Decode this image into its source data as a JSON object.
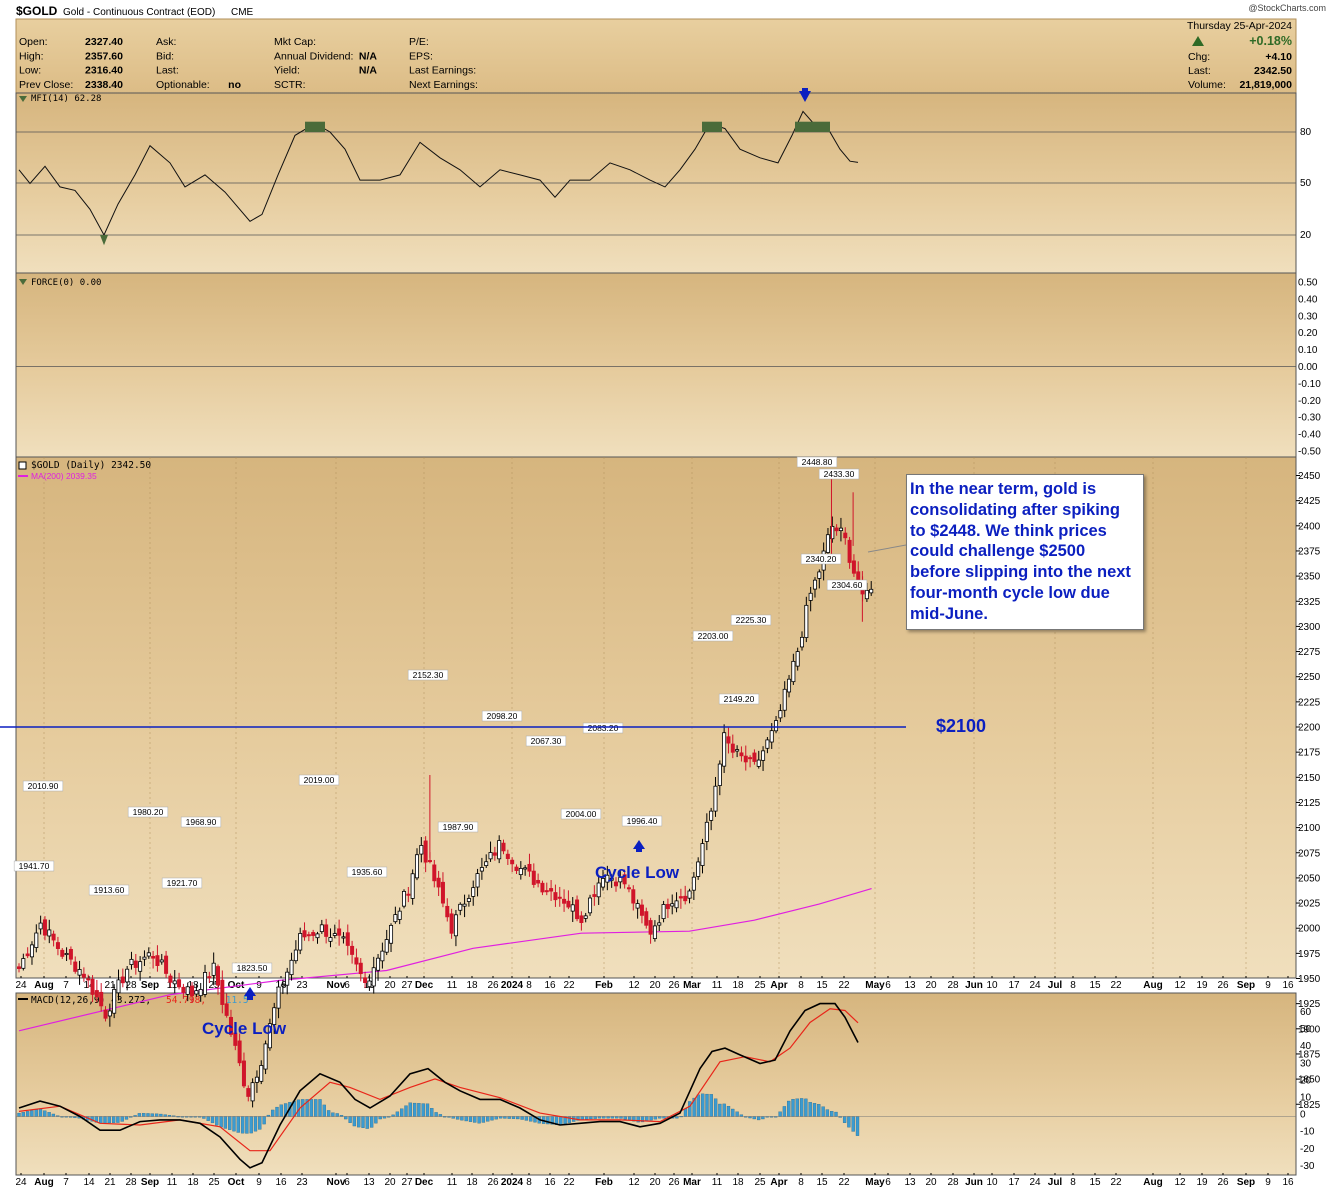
{
  "header": {
    "symbol": "$GOLD",
    "description": "Gold - Continuous Contract (EOD)",
    "exchange": "CME",
    "watermark": "@StockCharts.com",
    "date": "Thursday  25-Apr-2024",
    "stats_left": [
      {
        "label": "Open:",
        "value": "2327.40"
      },
      {
        "label": "High:",
        "value": "2357.60"
      },
      {
        "label": "Low:",
        "value": "2316.40"
      },
      {
        "label": "Prev Close:",
        "value": "2338.40"
      }
    ],
    "stats_mid": [
      {
        "label": "Ask:",
        "value": ""
      },
      {
        "label": "Bid:",
        "value": ""
      },
      {
        "label": "Last:",
        "value": ""
      },
      {
        "label": "Optionable:",
        "value": "no"
      }
    ],
    "stats_mid2": [
      {
        "label": "Mkt Cap:",
        "value": ""
      },
      {
        "label": "Annual Dividend:",
        "value": "N/A"
      },
      {
        "label": "Yield:",
        "value": "N/A"
      },
      {
        "label": "SCTR:",
        "value": ""
      }
    ],
    "stats_right": [
      {
        "label": "P/E:",
        "value": ""
      },
      {
        "label": "EPS:",
        "value": ""
      },
      {
        "label": "Last Earnings:",
        "value": ""
      },
      {
        "label": "Next Earnings:",
        "value": ""
      }
    ],
    "change_pct": "+0.18%",
    "chg_label": "Chg:",
    "chg": "+4.10",
    "last_label": "Last:",
    "last": "2342.50",
    "volume_label": "Volume:",
    "volume": "21,819,000"
  },
  "panels": {
    "mfi": {
      "label": "MFI(14) 62.28",
      "ticks": [
        "80",
        "50",
        "20"
      ]
    },
    "force": {
      "label": "FORCE(0) 0.00",
      "ticks": [
        "0.50",
        "0.40",
        "0.30",
        "0.20",
        "0.10",
        "0.00",
        "-0.10",
        "-0.20",
        "-0.30",
        "-0.40",
        "-0.50"
      ]
    },
    "price": {
      "label": "$GOLD (Daily) 2342.50",
      "ma_label": "MA(200) 2039.35",
      "ticks": [
        "2450",
        "2425",
        "2400",
        "2375",
        "2350",
        "2325",
        "2300",
        "2275",
        "2250",
        "2225",
        "2200",
        "2175",
        "2150",
        "2125",
        "2100",
        "2075",
        "2050",
        "2025",
        "2000",
        "1975",
        "1950",
        "1925",
        "1900",
        "1875",
        "1850",
        "1825"
      ]
    },
    "macd": {
      "label": "MACD(12,26,9) 43.272,",
      "signal": "54.798,",
      "hist": "-11.5",
      "ticks": [
        "60",
        "50",
        "40",
        "30",
        "20",
        "10",
        "0",
        "-10",
        "-20",
        "-30"
      ]
    }
  },
  "x_axis": [
    "24",
    "Aug",
    "7",
    "14",
    "21",
    "28",
    "Sep",
    "11",
    "18",
    "25",
    "Oct",
    "9",
    "16",
    "23",
    "Nov",
    "6",
    "13",
    "20",
    "27",
    "Dec",
    "11",
    "18",
    "26",
    "2024",
    "8",
    "16",
    "22",
    "Feb",
    "12",
    "20",
    "26",
    "Mar",
    "11",
    "18",
    "25",
    "Apr",
    "8",
    "15",
    "22",
    "May",
    "6",
    "13",
    "20",
    "28",
    "Jun",
    "10",
    "17",
    "24",
    "Jul",
    "8",
    "15",
    "22",
    "Aug",
    "12",
    "19",
    "26",
    "Sep",
    "9",
    "16"
  ],
  "annotations": {
    "level_2100": "$2100",
    "cycle_low_1": "Cycle Low",
    "cycle_low_2": "Cycle Low",
    "note": "In the near term, gold is consolidating after spiking to $2448. We think prices could challenge $2500 before slipping into the next four-month cycle low due mid-June."
  },
  "colors": {
    "panel_bg": "#e2c695",
    "up": "#000000",
    "down": "#d0152a",
    "ma": "#e020e0",
    "level": "#0b1fc0",
    "macd": "#000000",
    "macd_signal": "#e8261a",
    "hist": "#3b9bd0",
    "mfi_fill": "#4a6b3a"
  },
  "chart_data": {
    "type": "candlestick",
    "title": "$GOLD Gold - Continuous Contract (EOD) CME",
    "price_range": [
      1810,
      2470
    ],
    "price_labels": [
      {
        "label": "2010.90",
        "value": 2010.9
      },
      {
        "label": "1941.70",
        "value": 1941.7
      },
      {
        "label": "1913.60",
        "value": 1913.6
      },
      {
        "label": "1980.20",
        "value": 1980.2
      },
      {
        "label": "1921.70",
        "value": 1921.7
      },
      {
        "label": "1968.90",
        "value": 1968.9
      },
      {
        "label": "1823.50",
        "value": 1823.5
      },
      {
        "label": "2019.00",
        "value": 2019.0
      },
      {
        "label": "1935.60",
        "value": 1935.6
      },
      {
        "label": "2152.30",
        "value": 2152.3
      },
      {
        "label": "1987.90",
        "value": 1987.9
      },
      {
        "label": "2098.20",
        "value": 2098.2
      },
      {
        "label": "2067.30",
        "value": 2067.3
      },
      {
        "label": "2004.00",
        "value": 2004.0
      },
      {
        "label": "2083.20",
        "value": 2083.2
      },
      {
        "label": "1996.40",
        "value": 1996.4
      },
      {
        "label": "2203.00",
        "value": 2203.0
      },
      {
        "label": "2149.20",
        "value": 2149.2
      },
      {
        "label": "2225.30",
        "value": 2225.3
      },
      {
        "label": "2448.80",
        "value": 2448.8
      },
      {
        "label": "2433.30",
        "value": 2433.3
      },
      {
        "label": "2340.20",
        "value": 2340.2
      },
      {
        "label": "2304.60",
        "value": 2304.6
      }
    ],
    "close_path": [
      [
        "2023-07-24",
        1960
      ],
      [
        "2023-07-31",
        2005
      ],
      [
        "2023-08-07",
        1975
      ],
      [
        "2023-08-14",
        1955
      ],
      [
        "2023-08-21",
        1915
      ],
      [
        "2023-08-28",
        1960
      ],
      [
        "2023-09-05",
        1975
      ],
      [
        "2023-09-11",
        1950
      ],
      [
        "2023-09-18",
        1935
      ],
      [
        "2023-09-25",
        1960
      ],
      [
        "2023-10-02",
        1880
      ],
      [
        "2023-10-06",
        1835
      ],
      [
        "2023-10-10",
        1865
      ],
      [
        "2023-10-16",
        1935
      ],
      [
        "2023-10-23",
        1990
      ],
      [
        "2023-10-30",
        2000
      ],
      [
        "2023-11-06",
        1985
      ],
      [
        "2023-11-13",
        1945
      ],
      [
        "2023-11-20",
        1990
      ],
      [
        "2023-11-27",
        2040
      ],
      [
        "2023-12-01",
        2085
      ],
      [
        "2023-12-04",
        2060
      ],
      [
        "2023-12-11",
        2000
      ],
      [
        "2023-12-18",
        2045
      ],
      [
        "2023-12-27",
        2085
      ],
      [
        "2024-01-02",
        2060
      ],
      [
        "2024-01-08",
        2045
      ],
      [
        "2024-01-16",
        2030
      ],
      [
        "2024-01-22",
        2010
      ],
      [
        "2024-01-29",
        2055
      ],
      [
        "2024-02-05",
        2045
      ],
      [
        "2024-02-13",
        1995
      ],
      [
        "2024-02-20",
        2030
      ],
      [
        "2024-02-26",
        2035
      ],
      [
        "2024-03-04",
        2115
      ],
      [
        "2024-03-08",
        2190
      ],
      [
        "2024-03-11",
        2175
      ],
      [
        "2024-03-18",
        2160
      ],
      [
        "2024-03-25",
        2200
      ],
      [
        "2024-04-01",
        2275
      ],
      [
        "2024-04-05",
        2330
      ],
      [
        "2024-04-08",
        2355
      ],
      [
        "2024-04-12",
        2400
      ],
      [
        "2024-04-16",
        2390
      ],
      [
        "2024-04-22",
        2325
      ],
      [
        "2024-04-25",
        2342.5
      ]
    ],
    "ma200": {
      "name": "MA(200)",
      "last": 2039.35
    },
    "indicators": {
      "MFI(14)": 62.28,
      "FORCE(0)": 0.0,
      "MACD(12,26,9)": [
        43.272,
        54.798,
        -11.5
      ]
    },
    "horizontal_line": 2100,
    "ylabel": "",
    "xlabel": ""
  }
}
